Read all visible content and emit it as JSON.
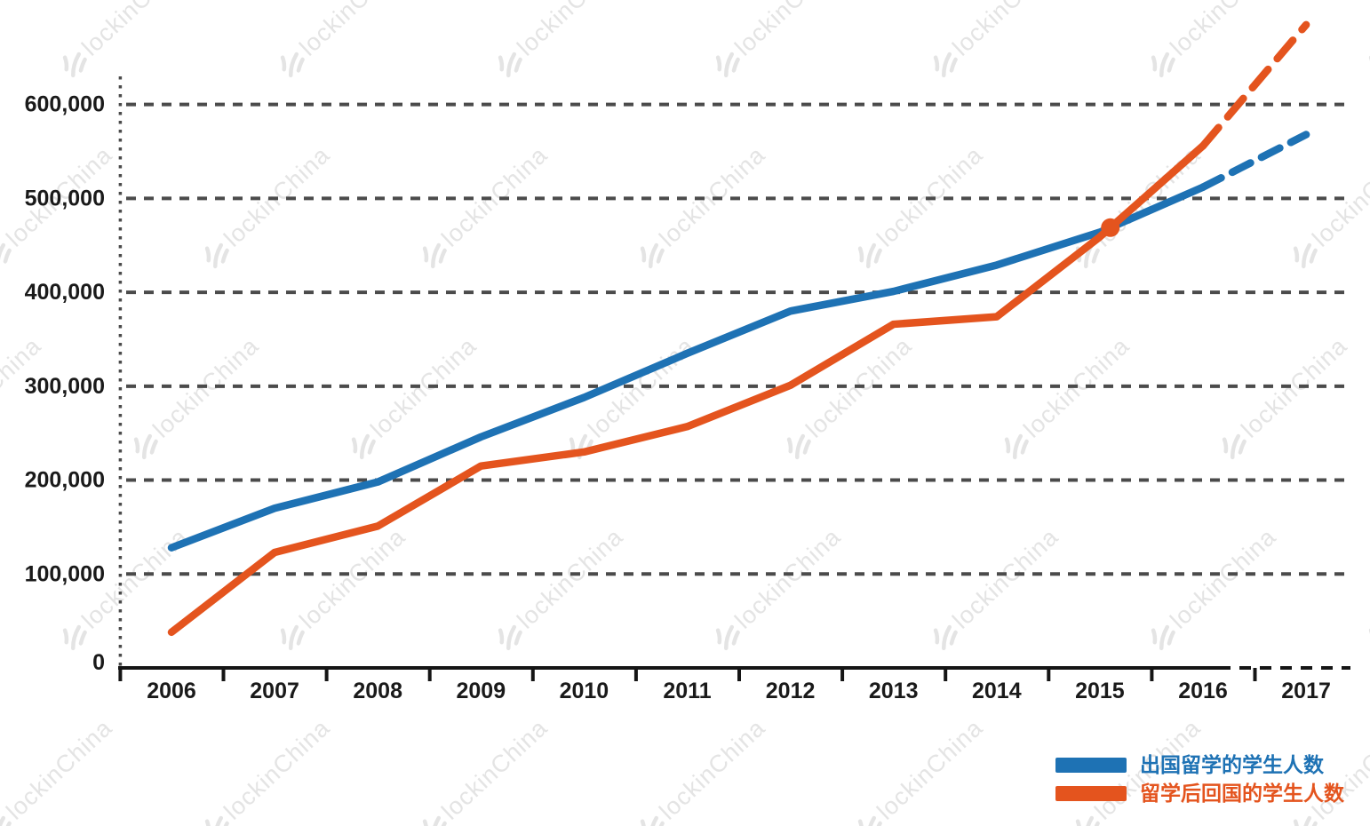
{
  "watermark": {
    "text": "lockinChina"
  },
  "colors": {
    "abroad_line": "#1e72b4",
    "return_line": "#e4541e",
    "gridline": "#4b4b4b",
    "axis": "#151515",
    "tick_label": "#1a1a1a",
    "watermark": "#e4e4e4",
    "background": "#ffffff"
  },
  "chart_data": {
    "type": "line",
    "title": "",
    "xlabel": "",
    "ylabel": "",
    "categories": [
      "2006",
      "2007",
      "2008",
      "2009",
      "2010",
      "2011",
      "2012",
      "2013",
      "2014",
      "2015",
      "2016",
      "2017"
    ],
    "series": [
      {
        "name": "出国留学的学生人数",
        "color": "#1e72b4",
        "values": [
          128000,
          170000,
          198000,
          246000,
          288000,
          335000,
          380000,
          401000,
          429000,
          464000,
          512000,
          568000
        ],
        "solid_through": "2016",
        "style_after_2016": "dashed-projection"
      },
      {
        "name": "留学后回国的学生人数",
        "color": "#e4541e",
        "values": [
          38000,
          123000,
          151000,
          215000,
          230000,
          257000,
          301000,
          366000,
          374000,
          459000,
          556000,
          685000
        ],
        "solid_through": "2016",
        "style_after_2016": "dashed-projection"
      }
    ],
    "intersection_marker": {
      "series": "留学后回国的学生人数",
      "between": [
        "2015",
        "2016"
      ],
      "approx_value": 469000,
      "shape": "filled-circle"
    },
    "y_ticks": [
      {
        "value": 0,
        "label": "0"
      },
      {
        "value": 100000,
        "label": "100,000"
      },
      {
        "value": 200000,
        "label": "200,000"
      },
      {
        "value": 300000,
        "label": "300,000"
      },
      {
        "value": 400000,
        "label": "400,000"
      },
      {
        "value": 500000,
        "label": "500,000"
      },
      {
        "value": 600000,
        "label": "600,000"
      }
    ],
    "ylim": [
      0,
      700000
    ],
    "grid": "horizontal-dashed",
    "y_axis_style": "dotted-vertical",
    "x_axis_style": "solid-then-dashed-after-2016",
    "legend_position": "bottom-right"
  },
  "legend": {
    "items": [
      {
        "label": "出国留学的学生人数",
        "color": "#1e72b4"
      },
      {
        "label": "留学后回国的学生人数",
        "color": "#e4541e"
      }
    ]
  }
}
